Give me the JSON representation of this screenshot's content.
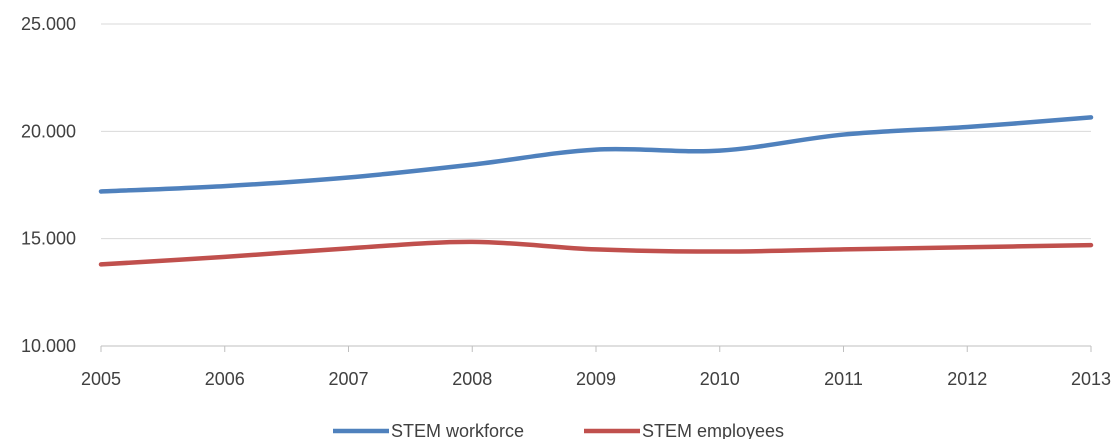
{
  "chart_data": {
    "type": "line",
    "title": "",
    "xlabel": "",
    "ylabel": "",
    "categories": [
      "2005",
      "2006",
      "2007",
      "2008",
      "2009",
      "2010",
      "2011",
      "2012",
      "2013"
    ],
    "y_ticks": [
      "10.000",
      "15.000",
      "20.000",
      "25.000"
    ],
    "y_tick_values": [
      10000,
      15000,
      20000,
      25000
    ],
    "ylim": [
      10000,
      25000
    ],
    "grid": true,
    "smooth": true,
    "legend_position": "bottom",
    "series": [
      {
        "name": "STEM workforce",
        "color": "#4F81BD",
        "values": [
          17200,
          17450,
          17850,
          18450,
          19150,
          19100,
          19850,
          20200,
          20650
        ]
      },
      {
        "name": "STEM employees",
        "color": "#C0504D",
        "values": [
          13800,
          14150,
          14550,
          14850,
          14500,
          14400,
          14500,
          14600,
          14700
        ]
      }
    ]
  }
}
